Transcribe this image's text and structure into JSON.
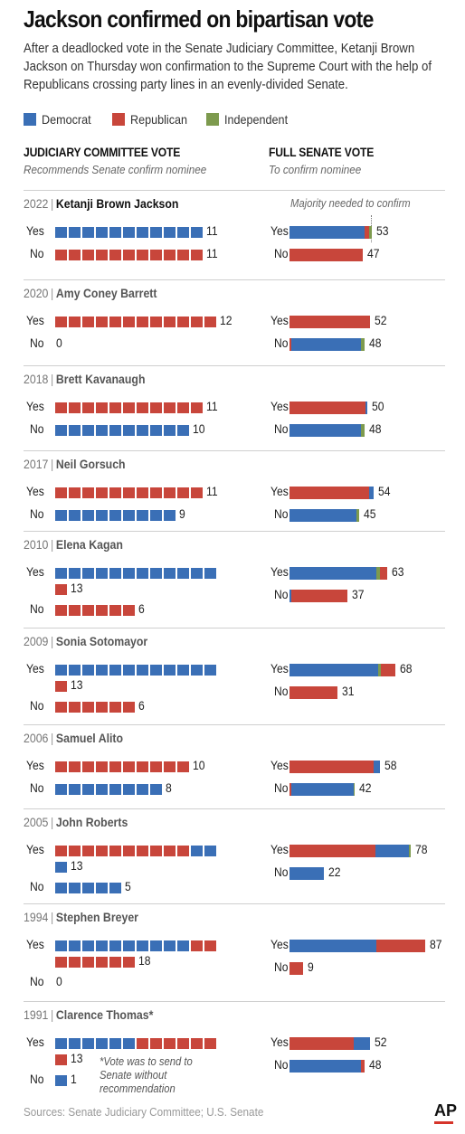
{
  "title": "Jackson confirmed on bipartisan vote",
  "subtitle": "After a deadlocked vote in the Senate Judiciary Committee, Ketanji Brown Jackson on Thursday won confirmation to the Supreme Court with the help of Republicans crossing party lines in an evenly-divided Senate.",
  "colors": {
    "Democrat": "#3a6fb6",
    "Republican": "#c8463b",
    "Independent": "#7d9a4e"
  },
  "source": "Sources: Senate Judiciary Committee; U.S. Senate",
  "logo": "AP",
  "chart_data": {
    "type": "bar",
    "legend": [
      "Democrat",
      "Republican",
      "Independent"
    ],
    "legend_placement": "top-left",
    "committee": {
      "title": "JUDICIARY COMMITTEE VOTE",
      "subtitle": "Recommends Senate confirm nominee"
    },
    "senate": {
      "title": "FULL SENATE VOTE",
      "subtitle": "To confirm nominee",
      "majority_label": "Majority needed to confirm"
    },
    "footnote": "*Vote was to send to Senate without recommendation",
    "row_labels": {
      "yes": "Yes",
      "no": "No"
    },
    "nominees": [
      {
        "year": "2022",
        "name": "Ketanji Brown Jackson",
        "current": true,
        "committee": {
          "yes": [
            {
              "party": "Democrat",
              "n": 11
            }
          ],
          "yes_total": "11",
          "no": [
            {
              "party": "Republican",
              "n": 11
            }
          ],
          "no_total": "11"
        },
        "senate": {
          "yes": [
            {
              "party": "Democrat",
              "n": 48
            },
            {
              "party": "Republican",
              "n": 3
            },
            {
              "party": "Independent",
              "n": 2
            }
          ],
          "yes_total": "53",
          "no": [
            {
              "party": "Republican",
              "n": 47
            }
          ],
          "no_total": "47"
        }
      },
      {
        "year": "2020",
        "name": "Amy Coney Barrett",
        "committee": {
          "yes": [
            {
              "party": "Republican",
              "n": 12
            }
          ],
          "yes_total": "12",
          "no": [],
          "no_total": "0"
        },
        "senate": {
          "yes": [
            {
              "party": "Republican",
              "n": 52
            }
          ],
          "yes_total": "52",
          "no": [
            {
              "party": "Republican",
              "n": 1
            },
            {
              "party": "Democrat",
              "n": 45
            },
            {
              "party": "Independent",
              "n": 2
            }
          ],
          "no_total": "48"
        }
      },
      {
        "year": "2018",
        "name": "Brett Kavanaugh",
        "committee": {
          "yes": [
            {
              "party": "Republican",
              "n": 11
            }
          ],
          "yes_total": "11",
          "no": [
            {
              "party": "Democrat",
              "n": 10
            }
          ],
          "no_total": "10"
        },
        "senate": {
          "yes": [
            {
              "party": "Republican",
              "n": 49
            },
            {
              "party": "Democrat",
              "n": 1
            }
          ],
          "yes_total": "50",
          "no": [
            {
              "party": "Democrat",
              "n": 46
            },
            {
              "party": "Independent",
              "n": 2
            }
          ],
          "no_total": "48"
        }
      },
      {
        "year": "2017",
        "name": "Neil Gorsuch",
        "committee": {
          "yes": [
            {
              "party": "Republican",
              "n": 11
            }
          ],
          "yes_total": "11",
          "no": [
            {
              "party": "Democrat",
              "n": 9
            }
          ],
          "no_total": "9"
        },
        "senate": {
          "yes": [
            {
              "party": "Republican",
              "n": 51
            },
            {
              "party": "Democrat",
              "n": 3
            }
          ],
          "yes_total": "54",
          "no": [
            {
              "party": "Democrat",
              "n": 43
            },
            {
              "party": "Independent",
              "n": 2
            }
          ],
          "no_total": "45"
        }
      },
      {
        "year": "2010",
        "name": "Elena Kagan",
        "committee": {
          "yes": [
            {
              "party": "Democrat",
              "n": 12
            },
            {
              "party": "Republican",
              "n": 1
            }
          ],
          "yes_total": "13",
          "yes_wrap": true,
          "no": [
            {
              "party": "Republican",
              "n": 6
            }
          ],
          "no_total": "6"
        },
        "senate": {
          "yes": [
            {
              "party": "Democrat",
              "n": 56
            },
            {
              "party": "Independent",
              "n": 2
            },
            {
              "party": "Republican",
              "n": 5
            }
          ],
          "yes_total": "63",
          "no": [
            {
              "party": "Democrat",
              "n": 1
            },
            {
              "party": "Republican",
              "n": 36
            }
          ],
          "no_total": "37"
        }
      },
      {
        "year": "2009",
        "name": "Sonia Sotomayor",
        "committee": {
          "yes": [
            {
              "party": "Democrat",
              "n": 12
            },
            {
              "party": "Republican",
              "n": 1
            }
          ],
          "yes_total": "13",
          "yes_wrap": true,
          "no": [
            {
              "party": "Republican",
              "n": 6
            }
          ],
          "no_total": "6"
        },
        "senate": {
          "yes": [
            {
              "party": "Democrat",
              "n": 57
            },
            {
              "party": "Independent",
              "n": 2
            },
            {
              "party": "Republican",
              "n": 9
            }
          ],
          "yes_total": "68",
          "no": [
            {
              "party": "Republican",
              "n": 31
            }
          ],
          "no_total": "31"
        }
      },
      {
        "year": "2006",
        "name": "Samuel Alito",
        "committee": {
          "yes": [
            {
              "party": "Republican",
              "n": 10
            }
          ],
          "yes_total": "10",
          "no": [
            {
              "party": "Democrat",
              "n": 8
            }
          ],
          "no_total": "8"
        },
        "senate": {
          "yes": [
            {
              "party": "Republican",
              "n": 54
            },
            {
              "party": "Democrat",
              "n": 4
            }
          ],
          "yes_total": "58",
          "no": [
            {
              "party": "Republican",
              "n": 1
            },
            {
              "party": "Democrat",
              "n": 40
            },
            {
              "party": "Independent",
              "n": 1
            }
          ],
          "no_total": "42"
        }
      },
      {
        "year": "2005",
        "name": "John Roberts",
        "committee": {
          "yes": [
            {
              "party": "Republican",
              "n": 10
            },
            {
              "party": "Democrat",
              "n": 3
            }
          ],
          "yes_total": "13",
          "yes_wrap": true,
          "no": [
            {
              "party": "Democrat",
              "n": 5
            }
          ],
          "no_total": "5"
        },
        "senate": {
          "yes": [
            {
              "party": "Republican",
              "n": 55
            },
            {
              "party": "Democrat",
              "n": 22
            },
            {
              "party": "Independent",
              "n": 1
            }
          ],
          "yes_total": "78",
          "no": [
            {
              "party": "Democrat",
              "n": 22
            }
          ],
          "no_total": "22"
        }
      },
      {
        "year": "1994",
        "name": "Stephen Breyer",
        "committee": {
          "yes": [
            {
              "party": "Democrat",
              "n": 10
            },
            {
              "party": "Republican",
              "n": 8
            }
          ],
          "yes_total": "18",
          "yes_wrap": true,
          "no": [],
          "no_total": "0"
        },
        "senate": {
          "yes": [
            {
              "party": "Democrat",
              "n": 56
            },
            {
              "party": "Republican",
              "n": 31
            }
          ],
          "yes_total": "87",
          "no": [
            {
              "party": "Republican",
              "n": 9
            }
          ],
          "no_total": "9"
        }
      },
      {
        "year": "1991",
        "name": "Clarence Thomas*",
        "committee": {
          "yes": [
            {
              "party": "Democrat",
              "n": 6
            },
            {
              "party": "Republican",
              "n": 7
            }
          ],
          "yes_total": "13",
          "yes_wrap": true,
          "no": [
            {
              "party": "Democrat",
              "n": 1
            }
          ],
          "no_total": "1"
        },
        "senate": {
          "yes": [
            {
              "party": "Republican",
              "n": 41
            },
            {
              "party": "Democrat",
              "n": 11
            }
          ],
          "yes_total": "52",
          "no": [
            {
              "party": "Democrat",
              "n": 46
            },
            {
              "party": "Republican",
              "n": 2
            }
          ],
          "no_total": "48"
        }
      }
    ]
  }
}
